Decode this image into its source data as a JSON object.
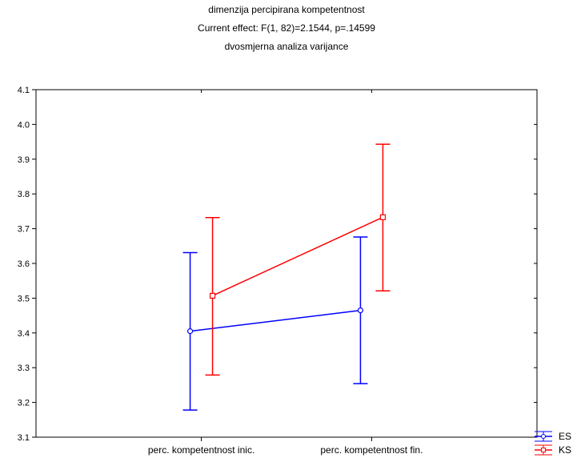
{
  "chart_data": {
    "type": "line",
    "title": "dimenzija percipirana kompetentnost",
    "subtitle": "Current effect: F(1, 82)=2.1544, p=.14599",
    "subtitle2": "dvosmjerna analiza varijance",
    "categories": [
      "perc. kompetentnost inic.",
      "perc. kompetentnost fin."
    ],
    "ylim": [
      3.1,
      4.1
    ],
    "yticks": [
      "3.1",
      "3.2",
      "3.3",
      "3.4",
      "3.5",
      "3.6",
      "3.7",
      "3.8",
      "3.9",
      "4.0",
      "4.1"
    ],
    "grid": false,
    "legend_position": "bottom-right",
    "series": [
      {
        "name": "ES",
        "color": "#0000ff",
        "marker": "circle",
        "values": [
          3.405,
          3.465
        ],
        "ci_low": [
          3.178,
          3.254
        ],
        "ci_high": [
          3.631,
          3.676
        ]
      },
      {
        "name": "KS",
        "color": "#ff0000",
        "marker": "square",
        "values": [
          3.507,
          3.733
        ],
        "ci_low": [
          3.279,
          3.521
        ],
        "ci_high": [
          3.732,
          3.943
        ]
      }
    ]
  }
}
